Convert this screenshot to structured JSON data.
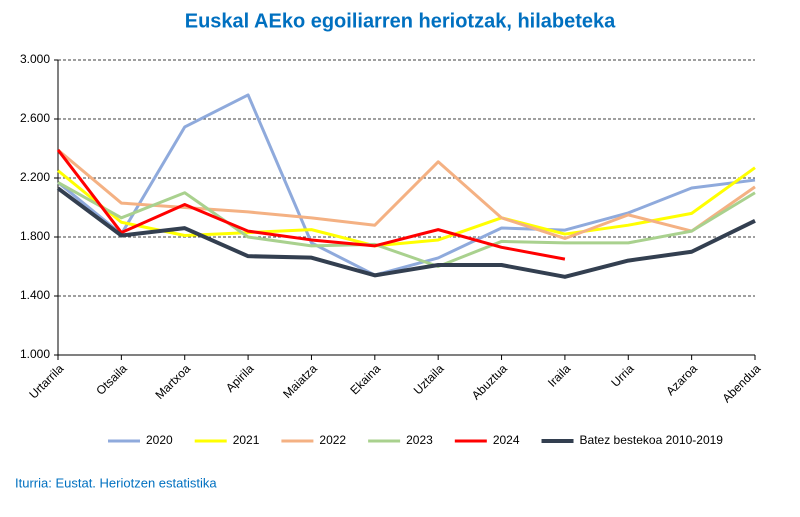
{
  "chart_data": {
    "type": "line",
    "title": "Euskal AEko egoiliarren heriotzak, hilabeteka",
    "source": "Iturria: Eustat. Heriotzen estatistika",
    "categories": [
      "Urtarrila",
      "Otsaila",
      "Martxoa",
      "Apirila",
      "Maiatza",
      "Ekaina",
      "Uztaila",
      "Abuztua",
      "Iraila",
      "Urria",
      "Azaroa",
      "Abendua"
    ],
    "ylim": [
      1000,
      3000
    ],
    "yticks": [
      {
        "value": 1000,
        "label": "1.000"
      },
      {
        "value": 1400,
        "label": "1.400"
      },
      {
        "value": 1800,
        "label": "1.800"
      },
      {
        "value": 2200,
        "label": "2.200"
      },
      {
        "value": 2600,
        "label": "2.600"
      },
      {
        "value": 3000,
        "label": "3.000"
      }
    ],
    "grid": true,
    "legend": "bottom",
    "series": [
      {
        "name": "2020",
        "color": "#8faadc",
        "values": [
          2170,
          1820,
          2546,
          2763,
          1760,
          1542,
          1658,
          1861,
          1847,
          1963,
          2132,
          2186
        ]
      },
      {
        "name": "2021",
        "color": "#ffff00",
        "values": [
          2250,
          1900,
          1810,
          1830,
          1850,
          1740,
          1780,
          1930,
          1820,
          1880,
          1960,
          2270
        ]
      },
      {
        "name": "2022",
        "color": "#f4b183",
        "values": [
          2390,
          2030,
          2000,
          1970,
          1930,
          1880,
          2310,
          1930,
          1790,
          1950,
          1840,
          2140
        ]
      },
      {
        "name": "2023",
        "color": "#a9d18e",
        "values": [
          2170,
          1930,
          2100,
          1800,
          1740,
          1750,
          1600,
          1770,
          1760,
          1760,
          1840,
          2100
        ]
      },
      {
        "name": "2024",
        "color": "#ff0000",
        "values": [
          2390,
          1830,
          2020,
          1840,
          1780,
          1740,
          1850,
          1730,
          1650,
          null,
          null,
          null
        ]
      },
      {
        "name": "Batez bestekoa 2010-2019",
        "color": "#333f50",
        "values": [
          2130,
          1810,
          1860,
          1670,
          1660,
          1540,
          1610,
          1610,
          1530,
          1640,
          1700,
          1910
        ]
      }
    ]
  }
}
